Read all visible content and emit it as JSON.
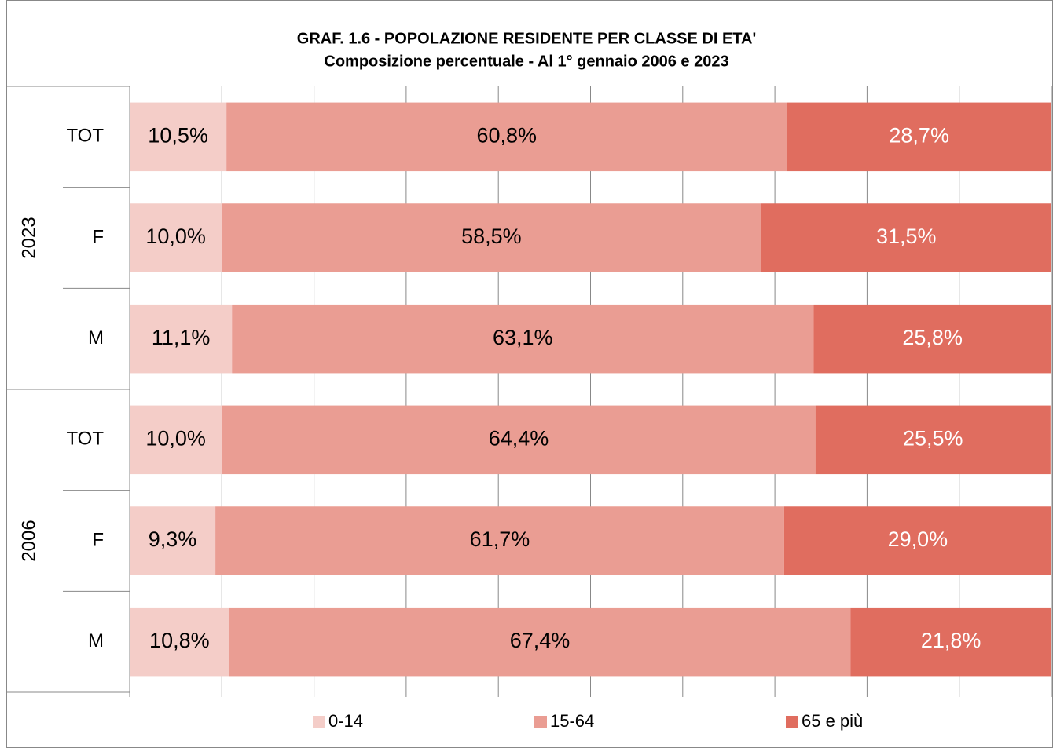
{
  "chart_data": {
    "type": "stacked_bar_horizontal",
    "title": "GRAF. 1.6 - POPOLAZIONE RESIDENTE PER CLASSE DI ETA'",
    "subtitle": "Composizione percentuale - Al 1° gennaio 2006 e 2023",
    "groups": [
      {
        "name": "2023",
        "categories": [
          "TOT",
          "F",
          "M"
        ]
      },
      {
        "name": "2006",
        "categories": [
          "TOT",
          "F",
          "M"
        ]
      }
    ],
    "series": [
      {
        "name": "0-14",
        "color": "#f4cdc8",
        "label_color": "#000000",
        "values": [
          10.5,
          10.0,
          11.1,
          10.0,
          9.3,
          10.8
        ],
        "value_labels": [
          "10,5%",
          "10,0%",
          "11,1%",
          "10,0%",
          "9,3%",
          "10,8%"
        ]
      },
      {
        "name": "15-64",
        "color": "#ea9d93",
        "label_color": "#000000",
        "values": [
          60.8,
          58.5,
          63.1,
          64.4,
          61.7,
          67.4
        ],
        "value_labels": [
          "60,8%",
          "58,5%",
          "63,1%",
          "64,4%",
          "61,7%",
          "67,4%"
        ]
      },
      {
        "name": "65 e più",
        "color": "#e06d5f",
        "label_color": "#ffffff",
        "values": [
          28.7,
          31.5,
          25.8,
          25.5,
          29.0,
          21.8
        ],
        "value_labels": [
          "28,7%",
          "31,5%",
          "25,8%",
          "25,5%",
          "29,0%",
          "21,8%"
        ]
      }
    ],
    "xlim": [
      0,
      100
    ],
    "xticks": [
      0,
      10,
      20,
      30,
      40,
      50,
      60,
      70,
      80,
      90,
      100
    ],
    "grid": true,
    "legend": "bottom"
  }
}
